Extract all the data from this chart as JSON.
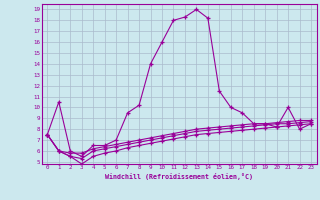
{
  "xlabel": "Windchill (Refroidissement éolien,°C)",
  "bg_color": "#cce8ee",
  "line_color": "#990099",
  "grid_color": "#aabbcc",
  "xlim": [
    -0.5,
    23.5
  ],
  "ylim": [
    4.8,
    19.5
  ],
  "xticks": [
    0,
    1,
    2,
    3,
    4,
    5,
    6,
    7,
    8,
    9,
    10,
    11,
    12,
    13,
    14,
    15,
    16,
    17,
    18,
    19,
    20,
    21,
    22,
    23
  ],
  "yticks": [
    5,
    6,
    7,
    8,
    9,
    10,
    11,
    12,
    13,
    14,
    15,
    16,
    17,
    18,
    19
  ],
  "line1": {
    "x": [
      0,
      1,
      2,
      3,
      4,
      5,
      6,
      7,
      8,
      9,
      10,
      11,
      12,
      13,
      14,
      15,
      16,
      17,
      18,
      19,
      20,
      21,
      22,
      23
    ],
    "y": [
      7.5,
      10.5,
      6.0,
      5.5,
      6.5,
      6.5,
      7.0,
      9.5,
      10.2,
      14.0,
      16.0,
      18.0,
      18.3,
      19.0,
      18.2,
      11.5,
      10.0,
      9.5,
      8.5,
      8.5,
      8.2,
      10.0,
      8.0,
      8.5
    ]
  },
  "line2": {
    "x": [
      0,
      1,
      2,
      3,
      4,
      5,
      6,
      7,
      8,
      9,
      10,
      11,
      12,
      13,
      14,
      15,
      16,
      17,
      18,
      19,
      20,
      21,
      22,
      23
    ],
    "y": [
      7.5,
      6.0,
      5.8,
      5.8,
      6.2,
      6.4,
      6.6,
      6.8,
      7.0,
      7.2,
      7.4,
      7.6,
      7.8,
      8.0,
      8.1,
      8.2,
      8.3,
      8.4,
      8.5,
      8.5,
      8.6,
      8.7,
      8.8,
      8.8
    ]
  },
  "line3": {
    "x": [
      0,
      1,
      2,
      3,
      4,
      5,
      6,
      7,
      8,
      9,
      10,
      11,
      12,
      13,
      14,
      15,
      16,
      17,
      18,
      19,
      20,
      21,
      22,
      23
    ],
    "y": [
      7.5,
      6.0,
      5.5,
      5.3,
      6.0,
      6.2,
      6.4,
      6.6,
      6.8,
      7.0,
      7.2,
      7.4,
      7.6,
      7.8,
      7.9,
      8.0,
      8.1,
      8.2,
      8.3,
      8.4,
      8.5,
      8.5,
      8.6,
      8.7
    ]
  },
  "line4": {
    "x": [
      0,
      1,
      2,
      3,
      4,
      5,
      6,
      7,
      8,
      9,
      10,
      11,
      12,
      13,
      14,
      15,
      16,
      17,
      18,
      19,
      20,
      21,
      22,
      23
    ],
    "y": [
      7.5,
      6.0,
      5.5,
      4.8,
      5.5,
      5.8,
      6.0,
      6.3,
      6.5,
      6.7,
      6.9,
      7.1,
      7.3,
      7.5,
      7.6,
      7.7,
      7.8,
      7.9,
      8.0,
      8.1,
      8.2,
      8.3,
      8.4,
      8.5
    ]
  }
}
